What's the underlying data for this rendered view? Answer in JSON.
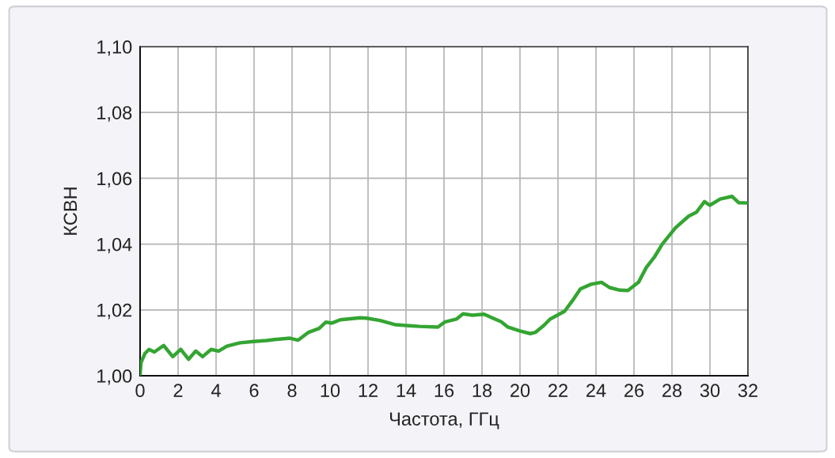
{
  "chart_data": {
    "type": "line",
    "xlabel": "Частота, ГГц",
    "ylabel": "КСВН",
    "x": [
      0,
      0.05,
      0.26,
      0.47,
      0.75,
      1.24,
      1.72,
      2.14,
      2.55,
      2.93,
      3.29,
      3.74,
      4.13,
      4.57,
      5.26,
      5.96,
      6.65,
      7.07,
      7.9,
      8.32,
      8.87,
      9.43,
      9.78,
      10.1,
      10.54,
      11.58,
      11.93,
      12.63,
      13.46,
      14.15,
      14.71,
      15.68,
      16.03,
      16.65,
      17.0,
      17.49,
      18.11,
      18.53,
      19.01,
      19.36,
      19.99,
      20.54,
      20.82,
      21.24,
      21.58,
      22.35,
      22.76,
      23.18,
      23.74,
      24.29,
      24.71,
      25.26,
      25.68,
      26.24,
      26.65,
      27.07,
      27.49,
      28.18,
      28.88,
      29.29,
      29.71,
      29.99,
      30.54,
      31.17,
      31.51,
      32
    ],
    "series": [
      {
        "color": "#34a532",
        "values": [
          1.0005,
          1.004,
          1.0068,
          1.008,
          1.0072,
          1.0092,
          1.0058,
          1.008,
          1.005,
          1.0075,
          1.0058,
          1.008,
          1.0075,
          1.009,
          1.01,
          1.0104,
          1.0107,
          1.011,
          1.0114,
          1.0108,
          1.0132,
          1.0144,
          1.0163,
          1.016,
          1.017,
          1.0176,
          1.0175,
          1.0168,
          1.0155,
          1.0152,
          1.015,
          1.0148,
          1.0163,
          1.0172,
          1.0188,
          1.0184,
          1.0187,
          1.0176,
          1.0164,
          1.0148,
          1.0136,
          1.0128,
          1.0132,
          1.0152,
          1.0172,
          1.0196,
          1.0228,
          1.0264,
          1.0278,
          1.0284,
          1.0268,
          1.026,
          1.0259,
          1.0284,
          1.0329,
          1.036,
          1.04,
          1.0449,
          1.0485,
          1.0497,
          1.0529,
          1.0518,
          1.0537,
          1.0545,
          1.0526,
          1.0525
        ]
      }
    ],
    "xlim": [
      0,
      32
    ],
    "ylim": [
      1.0,
      1.1
    ],
    "xticks": [
      0,
      2,
      4,
      6,
      8,
      10,
      12,
      14,
      16,
      18,
      20,
      22,
      24,
      26,
      28,
      30,
      32
    ],
    "yticks": [
      {
        "value": 1.0,
        "label": "1,00"
      },
      {
        "value": 1.02,
        "label": "1,02"
      },
      {
        "value": 1.04,
        "label": "1,04"
      },
      {
        "value": 1.06,
        "label": "1,06"
      },
      {
        "value": 1.08,
        "label": "1,08"
      },
      {
        "value": 1.1,
        "label": "1,10"
      }
    ],
    "grid": true,
    "line_style": "solid"
  }
}
